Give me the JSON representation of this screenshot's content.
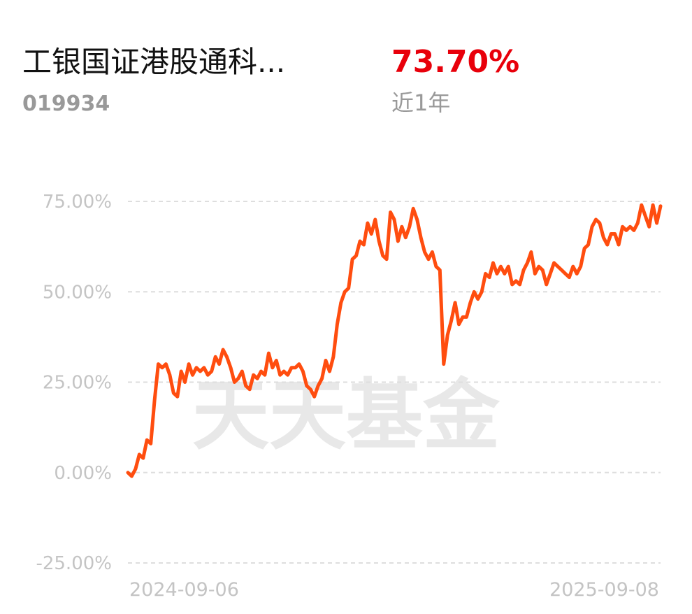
{
  "header": {
    "name": "工银国证港股通科...",
    "code": "019934",
    "return": "73.70%",
    "period": "近1年"
  },
  "chart_data": {
    "type": "line",
    "watermark": "天天基金",
    "color": "#ff4d0f",
    "grid": true,
    "ylim": [
      -25,
      75
    ],
    "yticks": [
      {
        "value": -25,
        "label": "-25.00%"
      },
      {
        "value": 0,
        "label": "0.00%"
      },
      {
        "value": 25,
        "label": "25.00%"
      },
      {
        "value": 50,
        "label": "50.00%"
      },
      {
        "value": 75,
        "label": "75.00%"
      }
    ],
    "categories": [
      "2024-09-06",
      null,
      null,
      null,
      null,
      null,
      null,
      null,
      null,
      null,
      null,
      null,
      null,
      null,
      null,
      null,
      null,
      null,
      null,
      null,
      null,
      null,
      null,
      null,
      null,
      null,
      null,
      null,
      null,
      null,
      null,
      null,
      null,
      null,
      null,
      null,
      null,
      null,
      null,
      null,
      null,
      null,
      null,
      null,
      null,
      null,
      null,
      null,
      null,
      null,
      null,
      null,
      null,
      null,
      null,
      null,
      null,
      null,
      null,
      null,
      null,
      null,
      null,
      null,
      null,
      null,
      null,
      null,
      null,
      null,
      null,
      null,
      null,
      null,
      null,
      null,
      null,
      null,
      null,
      null,
      null,
      null,
      null,
      null,
      null,
      null,
      null,
      null,
      null,
      null,
      null,
      null,
      null,
      null,
      null,
      null,
      null,
      null,
      null,
      null,
      null,
      null,
      null,
      null,
      null,
      null,
      null,
      null,
      null,
      null,
      null,
      null,
      null,
      null,
      null,
      null,
      null,
      null,
      null,
      null,
      null,
      null,
      null,
      null,
      null,
      null,
      null,
      null,
      null,
      null,
      null,
      null,
      null,
      null,
      null,
      null,
      null,
      null,
      null,
      null,
      "2025-09-08"
    ],
    "values": [
      0,
      -1,
      1,
      5,
      4,
      9,
      8,
      20,
      30,
      29,
      30,
      27,
      22,
      21,
      28,
      25,
      30,
      27,
      29,
      28,
      29,
      27,
      28,
      32,
      30,
      34,
      32,
      29,
      25,
      26,
      28,
      24,
      23,
      27,
      26,
      28,
      27,
      33,
      29,
      31,
      27,
      28,
      27,
      29,
      29,
      30,
      28,
      24,
      23,
      21,
      24,
      26,
      31,
      28,
      32,
      41,
      47,
      50,
      51,
      59,
      60,
      64,
      63,
      69,
      66,
      70,
      64,
      60,
      59,
      72,
      70,
      64,
      68,
      65,
      68,
      73,
      70,
      65,
      61,
      59,
      61,
      57,
      56,
      30,
      38,
      42,
      47,
      41,
      43,
      43,
      47,
      50,
      48,
      50,
      55,
      54,
      58,
      55,
      57,
      55,
      57,
      52,
      53,
      52,
      56,
      58,
      61,
      55,
      57,
      56,
      52,
      55,
      58,
      57,
      56,
      55,
      54,
      57,
      55,
      57,
      62,
      63,
      68,
      70,
      69,
      65,
      63,
      66,
      66,
      63,
      68,
      67,
      68,
      67,
      69,
      74,
      71,
      68,
      74,
      69,
      73.7
    ]
  }
}
